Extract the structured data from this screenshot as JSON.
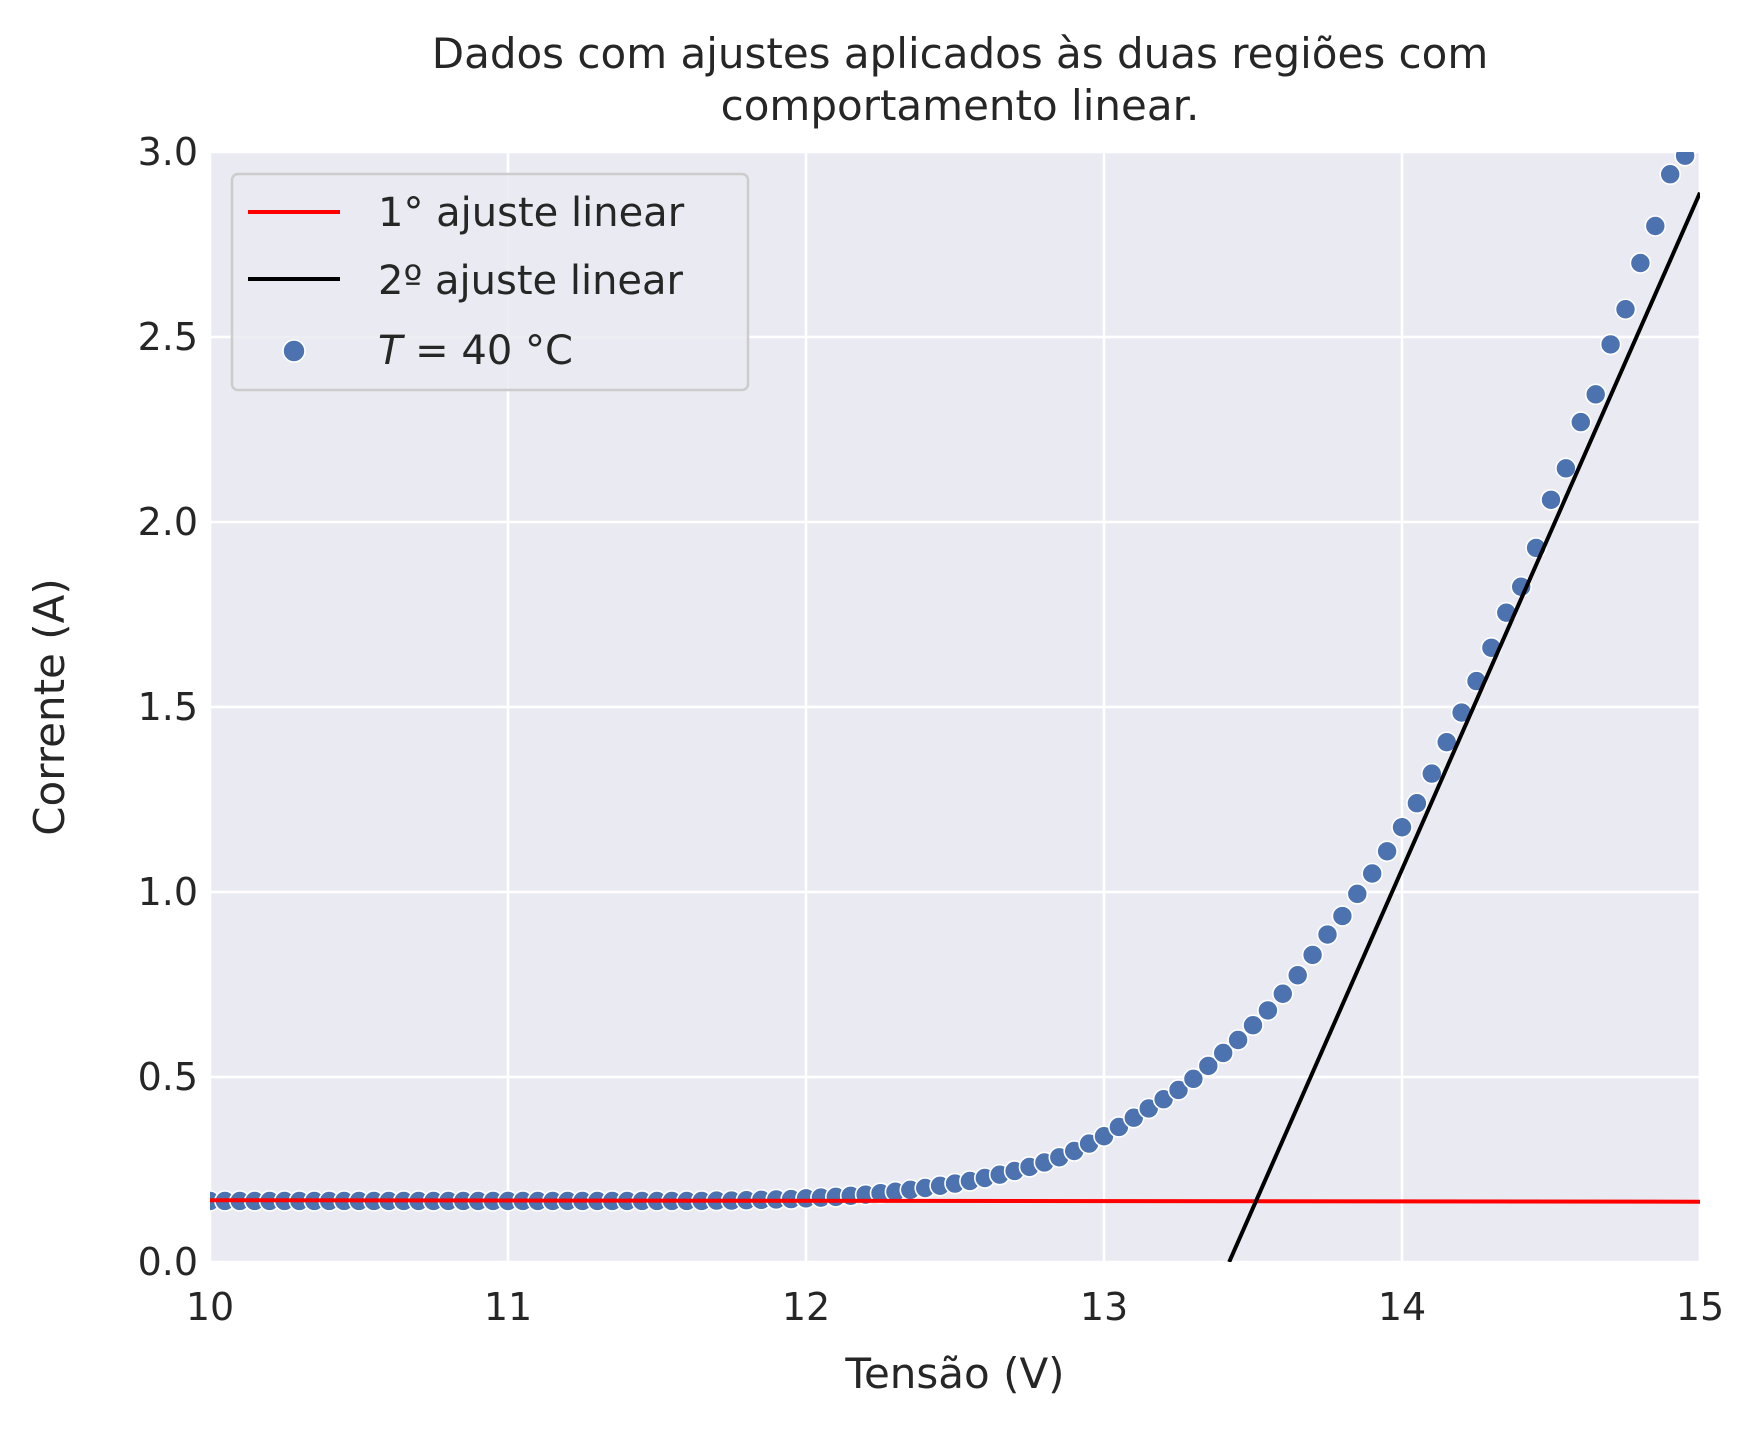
{
  "chart_data": {
    "type": "scatter",
    "title_line1": "Dados com ajustes aplicados às duas regiões com",
    "title_line2": "comportamento linear.",
    "xlabel": "Tensão (V)",
    "ylabel": "Corrente (A)",
    "xlim": [
      10,
      15
    ],
    "ylim": [
      0,
      3
    ],
    "xticks": [
      10,
      11,
      12,
      13,
      14,
      15
    ],
    "yticks": [
      0.0,
      0.5,
      1.0,
      1.5,
      2.0,
      2.5,
      3.0
    ],
    "xtick_labels": [
      "10",
      "11",
      "12",
      "13",
      "14",
      "15"
    ],
    "ytick_labels": [
      "0.0",
      "0.5",
      "1.0",
      "1.5",
      "2.0",
      "2.5",
      "3.0"
    ],
    "grid": true,
    "legend_position": "top-left",
    "legend": {
      "fit1": "1° ajuste linear",
      "fit2": "2º ajuste linear",
      "scatter_var": "T",
      "scatter_rest": " = 40 °C"
    },
    "colors": {
      "background": "#eaeaf2",
      "grid": "#ffffff",
      "scatter": "#4c72b0",
      "fit1": "#ff0000",
      "fit2": "#000000"
    },
    "fit1_line": {
      "x": [
        10,
        15
      ],
      "y": [
        0.167,
        0.163
      ]
    },
    "fit2_line": {
      "x": [
        13.42,
        15
      ],
      "y": [
        0.0,
        2.89
      ]
    },
    "series": [
      {
        "name": "T = 40 °C",
        "x": [
          10.0,
          10.05,
          10.1,
          10.15,
          10.2,
          10.25,
          10.3,
          10.35,
          10.4,
          10.45,
          10.5,
          10.55,
          10.6,
          10.65,
          10.7,
          10.75,
          10.8,
          10.85,
          10.9,
          10.95,
          11.0,
          11.05,
          11.1,
          11.15,
          11.2,
          11.25,
          11.3,
          11.35,
          11.4,
          11.45,
          11.5,
          11.55,
          11.6,
          11.65,
          11.7,
          11.75,
          11.8,
          11.85,
          11.9,
          11.95,
          12.0,
          12.05,
          12.1,
          12.15,
          12.2,
          12.25,
          12.3,
          12.35,
          12.4,
          12.45,
          12.5,
          12.55,
          12.6,
          12.65,
          12.7,
          12.75,
          12.8,
          12.85,
          12.9,
          12.95,
          13.0,
          13.05,
          13.1,
          13.15,
          13.2,
          13.25,
          13.3,
          13.35,
          13.4,
          13.45,
          13.5,
          13.55,
          13.6,
          13.65,
          13.7,
          13.75,
          13.8,
          13.85,
          13.9,
          13.95,
          14.0,
          14.05,
          14.1,
          14.15,
          14.2,
          14.25,
          14.3,
          14.35,
          14.4,
          14.45,
          14.5,
          14.55,
          14.6,
          14.65,
          14.7,
          14.75,
          14.8,
          14.85,
          14.9,
          14.95,
          15.0
        ],
        "y": [
          0.165,
          0.165,
          0.165,
          0.165,
          0.165,
          0.165,
          0.165,
          0.165,
          0.165,
          0.165,
          0.165,
          0.165,
          0.165,
          0.165,
          0.165,
          0.165,
          0.165,
          0.165,
          0.165,
          0.165,
          0.165,
          0.165,
          0.165,
          0.165,
          0.165,
          0.165,
          0.165,
          0.165,
          0.165,
          0.165,
          0.165,
          0.165,
          0.165,
          0.165,
          0.166,
          0.166,
          0.167,
          0.168,
          0.169,
          0.17,
          0.172,
          0.174,
          0.176,
          0.179,
          0.182,
          0.186,
          0.19,
          0.195,
          0.2,
          0.206,
          0.212,
          0.219,
          0.227,
          0.236,
          0.246,
          0.257,
          0.269,
          0.283,
          0.3,
          0.32,
          0.34,
          0.365,
          0.39,
          0.415,
          0.44,
          0.465,
          0.495,
          0.53,
          0.565,
          0.6,
          0.64,
          0.68,
          0.725,
          0.775,
          0.83,
          0.885,
          0.935,
          0.995,
          1.05,
          1.11,
          1.175,
          1.24,
          1.32,
          1.405,
          1.485,
          1.57,
          1.66,
          1.755,
          1.825,
          1.93,
          2.06,
          2.145,
          2.27,
          2.345,
          2.48,
          2.575,
          2.7,
          2.8,
          2.94,
          2.99,
          3.05
        ]
      }
    ]
  }
}
